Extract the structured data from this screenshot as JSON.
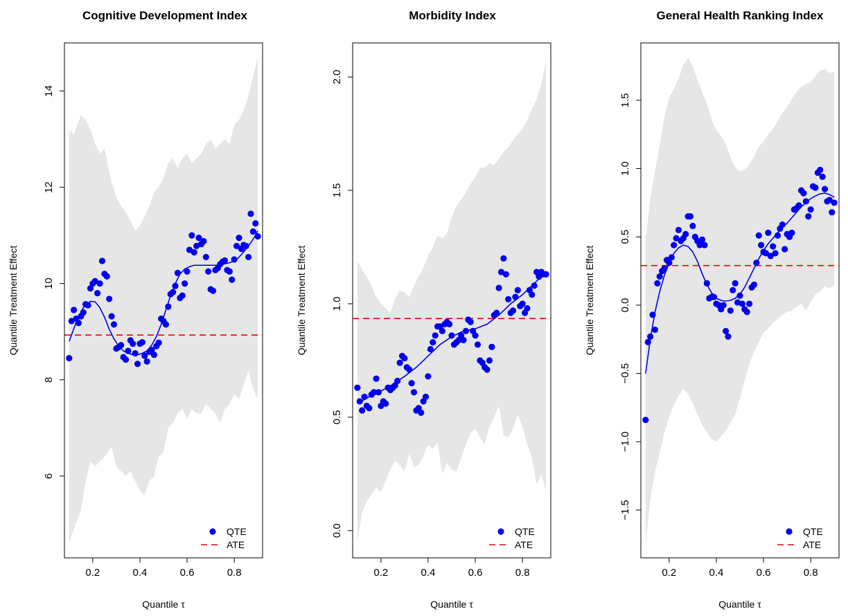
{
  "chart_data": [
    {
      "type": "scatter",
      "title": "Cognitive Development Index",
      "xlabel": "Quantile τ",
      "ylabel": "Quantile Treatment Effect",
      "xlim": [
        0.08,
        0.92
      ],
      "ylim": [
        4.3,
        15.0
      ],
      "xticks": [
        0.2,
        0.4,
        0.6,
        0.8
      ],
      "yticks": [
        6,
        8,
        10,
        12,
        14
      ],
      "grid": false,
      "legend_position": "bottom-right",
      "legend": [
        "QTE",
        "ATE"
      ],
      "colors": {
        "qte": "#0000ee",
        "ate": "#ee0000",
        "band": "#e6e6e6"
      },
      "ate": 8.93,
      "band": {
        "x": [
          0.1,
          0.12,
          0.15,
          0.17,
          0.19,
          0.21,
          0.23,
          0.25,
          0.28,
          0.3,
          0.32,
          0.34,
          0.36,
          0.38,
          0.4,
          0.42,
          0.44,
          0.46,
          0.48,
          0.5,
          0.52,
          0.54,
          0.56,
          0.58,
          0.6,
          0.62,
          0.64,
          0.66,
          0.68,
          0.7,
          0.72,
          0.74,
          0.76,
          0.78,
          0.8,
          0.82,
          0.84,
          0.86,
          0.88,
          0.9
        ],
        "upper": [
          13.2,
          13.1,
          13.5,
          13.4,
          13.2,
          12.9,
          12.7,
          12.8,
          12.1,
          11.8,
          11.6,
          11.5,
          11.3,
          11.1,
          11.2,
          11.4,
          11.6,
          11.9,
          12.0,
          12.2,
          12.5,
          12.6,
          12.4,
          12.6,
          12.7,
          12.5,
          12.6,
          12.7,
          12.9,
          13.0,
          12.8,
          12.9,
          13.0,
          12.9,
          13.3,
          13.4,
          13.6,
          13.9,
          14.3,
          14.7
        ],
        "lower": [
          4.6,
          4.9,
          5.3,
          5.9,
          6.3,
          6.2,
          6.3,
          6.4,
          6.6,
          6.2,
          6.1,
          6.0,
          6.1,
          5.9,
          5.7,
          5.6,
          5.9,
          6.0,
          6.4,
          6.5,
          7.0,
          7.1,
          7.3,
          7.4,
          7.2,
          7.4,
          7.3,
          7.3,
          7.5,
          7.4,
          7.3,
          7.1,
          7.4,
          7.5,
          7.7,
          7.6,
          7.9,
          8.2,
          7.8,
          7.6
        ]
      },
      "smooth": {
        "x": [
          0.1,
          0.13,
          0.16,
          0.19,
          0.21,
          0.23,
          0.25,
          0.27,
          0.29,
          0.31,
          0.33,
          0.35,
          0.37,
          0.39,
          0.41,
          0.43,
          0.45,
          0.47,
          0.49,
          0.51,
          0.53,
          0.55,
          0.57,
          0.59,
          0.61,
          0.63,
          0.65,
          0.67,
          0.69,
          0.71,
          0.73,
          0.75,
          0.77,
          0.79,
          0.81,
          0.83,
          0.85,
          0.87,
          0.89,
          0.9
        ],
        "y": [
          8.8,
          9.2,
          9.5,
          9.63,
          9.62,
          9.5,
          9.3,
          9.05,
          8.85,
          8.7,
          8.6,
          8.55,
          8.52,
          8.52,
          8.55,
          8.6,
          8.72,
          8.9,
          9.15,
          9.45,
          9.75,
          10.0,
          10.2,
          10.3,
          10.35,
          10.38,
          10.38,
          10.38,
          10.38,
          10.38,
          10.38,
          10.4,
          10.42,
          10.45,
          10.5,
          10.6,
          10.72,
          10.85,
          11.0,
          11.1
        ]
      },
      "points": {
        "x": [
          0.1,
          0.11,
          0.12,
          0.13,
          0.14,
          0.15,
          0.16,
          0.17,
          0.18,
          0.19,
          0.2,
          0.21,
          0.22,
          0.23,
          0.24,
          0.25,
          0.26,
          0.27,
          0.28,
          0.29,
          0.3,
          0.31,
          0.32,
          0.33,
          0.34,
          0.35,
          0.36,
          0.37,
          0.38,
          0.39,
          0.4,
          0.41,
          0.42,
          0.43,
          0.44,
          0.45,
          0.46,
          0.47,
          0.48,
          0.49,
          0.5,
          0.51,
          0.52,
          0.53,
          0.54,
          0.55,
          0.56,
          0.57,
          0.58,
          0.59,
          0.6,
          0.61,
          0.62,
          0.63,
          0.64,
          0.65,
          0.66,
          0.67,
          0.68,
          0.69,
          0.7,
          0.71,
          0.72,
          0.73,
          0.74,
          0.75,
          0.76,
          0.77,
          0.78,
          0.79,
          0.8,
          0.81,
          0.82,
          0.83,
          0.84,
          0.85,
          0.86,
          0.87,
          0.88,
          0.89,
          0.9
        ],
        "y": [
          8.45,
          9.22,
          9.45,
          9.27,
          9.18,
          9.32,
          9.4,
          9.57,
          9.55,
          9.9,
          10.0,
          10.05,
          9.8,
          10.0,
          10.47,
          10.2,
          10.15,
          9.68,
          9.32,
          9.15,
          8.65,
          8.68,
          8.72,
          8.47,
          8.42,
          8.6,
          8.82,
          8.75,
          8.55,
          8.33,
          8.75,
          8.78,
          8.5,
          8.38,
          8.58,
          8.62,
          8.52,
          8.7,
          8.77,
          9.27,
          9.22,
          9.15,
          9.52,
          9.78,
          9.82,
          9.95,
          10.22,
          9.7,
          9.75,
          10.0,
          10.25,
          10.7,
          11.0,
          10.65,
          10.78,
          10.95,
          10.82,
          10.88,
          10.55,
          10.25,
          9.88,
          9.85,
          10.28,
          10.32,
          10.4,
          10.45,
          10.48,
          10.28,
          10.25,
          10.08,
          10.5,
          10.78,
          10.95,
          10.72,
          10.8,
          10.78,
          10.55,
          11.45,
          11.08,
          11.25,
          10.98
        ]
      }
    },
    {
      "type": "scatter",
      "title": "Morbidity Index",
      "xlabel": "Quantile τ",
      "ylabel": "Quantile Treatment Effect",
      "xlim": [
        0.08,
        0.92
      ],
      "ylim": [
        -0.12,
        2.15
      ],
      "xticks": [
        0.2,
        0.4,
        0.6,
        0.8
      ],
      "yticks": [
        0.0,
        0.5,
        1.0,
        1.5,
        2.0
      ],
      "grid": false,
      "legend_position": "bottom-right",
      "legend": [
        "QTE",
        "ATE"
      ],
      "colors": {
        "qte": "#0000ee",
        "ate": "#ee0000",
        "band": "#e6e6e6"
      },
      "ate": 0.935,
      "band": {
        "x": [
          0.1,
          0.12,
          0.14,
          0.16,
          0.18,
          0.2,
          0.22,
          0.24,
          0.26,
          0.28,
          0.3,
          0.32,
          0.34,
          0.36,
          0.38,
          0.4,
          0.42,
          0.44,
          0.46,
          0.48,
          0.5,
          0.52,
          0.54,
          0.56,
          0.58,
          0.6,
          0.62,
          0.64,
          0.66,
          0.68,
          0.7,
          0.72,
          0.74,
          0.76,
          0.78,
          0.8,
          0.82,
          0.84,
          0.86,
          0.88,
          0.9
        ],
        "upper": [
          1.19,
          1.15,
          1.12,
          1.08,
          1.03,
          1.0,
          0.98,
          0.96,
          1.02,
          1.06,
          1.05,
          1.03,
          1.08,
          1.12,
          1.16,
          1.21,
          1.25,
          1.3,
          1.29,
          1.31,
          1.38,
          1.43,
          1.46,
          1.49,
          1.53,
          1.56,
          1.6,
          1.6,
          1.62,
          1.61,
          1.64,
          1.67,
          1.69,
          1.72,
          1.75,
          1.77,
          1.81,
          1.86,
          1.9,
          1.97,
          2.07
        ],
        "lower": [
          -0.05,
          0.08,
          0.13,
          0.16,
          0.19,
          0.17,
          0.22,
          0.27,
          0.31,
          0.29,
          0.26,
          0.34,
          0.28,
          0.29,
          0.33,
          0.38,
          0.36,
          0.39,
          0.25,
          0.3,
          0.27,
          0.26,
          0.32,
          0.38,
          0.43,
          0.45,
          0.41,
          0.38,
          0.46,
          0.5,
          0.55,
          0.42,
          0.41,
          0.45,
          0.51,
          0.46,
          0.38,
          0.32,
          0.2,
          0.25,
          0.17
        ]
      },
      "smooth": {
        "x": [
          0.1,
          0.15,
          0.2,
          0.25,
          0.3,
          0.35,
          0.4,
          0.45,
          0.5,
          0.55,
          0.6,
          0.65,
          0.7,
          0.75,
          0.8,
          0.85,
          0.9
        ],
        "y": [
          0.56,
          0.59,
          0.615,
          0.645,
          0.68,
          0.72,
          0.77,
          0.82,
          0.855,
          0.88,
          0.89,
          0.91,
          0.95,
          1.0,
          1.04,
          1.09,
          1.14
        ]
      },
      "points": {
        "x": [
          0.1,
          0.11,
          0.12,
          0.13,
          0.14,
          0.15,
          0.16,
          0.17,
          0.18,
          0.19,
          0.2,
          0.21,
          0.22,
          0.23,
          0.24,
          0.25,
          0.26,
          0.27,
          0.28,
          0.29,
          0.3,
          0.31,
          0.32,
          0.33,
          0.34,
          0.35,
          0.36,
          0.37,
          0.38,
          0.39,
          0.4,
          0.41,
          0.42,
          0.43,
          0.44,
          0.45,
          0.46,
          0.47,
          0.48,
          0.49,
          0.5,
          0.51,
          0.52,
          0.53,
          0.54,
          0.55,
          0.56,
          0.57,
          0.58,
          0.59,
          0.6,
          0.61,
          0.62,
          0.63,
          0.64,
          0.65,
          0.66,
          0.67,
          0.68,
          0.69,
          0.7,
          0.71,
          0.72,
          0.73,
          0.74,
          0.75,
          0.76,
          0.77,
          0.78,
          0.79,
          0.8,
          0.81,
          0.82,
          0.83,
          0.84,
          0.85,
          0.86,
          0.87,
          0.88,
          0.89,
          0.9
        ],
        "y": [
          0.63,
          0.57,
          0.53,
          0.59,
          0.55,
          0.54,
          0.6,
          0.61,
          0.67,
          0.61,
          0.55,
          0.57,
          0.56,
          0.63,
          0.62,
          0.63,
          0.64,
          0.66,
          0.74,
          0.77,
          0.76,
          0.72,
          0.71,
          0.65,
          0.61,
          0.53,
          0.54,
          0.52,
          0.57,
          0.59,
          0.68,
          0.8,
          0.83,
          0.86,
          0.9,
          0.9,
          0.88,
          0.91,
          0.92,
          0.91,
          0.86,
          0.82,
          0.83,
          0.84,
          0.86,
          0.84,
          0.88,
          0.93,
          0.92,
          0.88,
          0.86,
          0.82,
          0.75,
          0.74,
          0.72,
          0.71,
          0.75,
          0.81,
          0.95,
          0.96,
          1.07,
          1.14,
          1.2,
          1.13,
          1.02,
          0.96,
          0.97,
          1.03,
          1.06,
          0.99,
          1.0,
          0.96,
          0.98,
          1.06,
          1.04,
          1.08,
          1.14,
          1.12,
          1.14,
          1.13,
          1.13
        ]
      }
    },
    {
      "type": "scatter",
      "title": "General Health Ranking Index",
      "xlabel": "Quantile τ",
      "ylabel": "Quantile Treatment Effect",
      "xlim": [
        0.08,
        0.92
      ],
      "ylim": [
        -1.85,
        1.92
      ],
      "xticks": [
        0.2,
        0.4,
        0.6,
        0.8
      ],
      "yticks": [
        -1.5,
        -1.0,
        -0.5,
        0.0,
        0.5,
        1.0,
        1.5
      ],
      "grid": false,
      "legend_position": "bottom-right",
      "legend": [
        "QTE",
        "ATE"
      ],
      "colors": {
        "qte": "#0000ee",
        "ate": "#ee0000",
        "band": "#e6e6e6"
      },
      "ate": 0.29,
      "band": {
        "x": [
          0.1,
          0.12,
          0.14,
          0.16,
          0.18,
          0.2,
          0.22,
          0.24,
          0.26,
          0.28,
          0.3,
          0.32,
          0.34,
          0.36,
          0.38,
          0.4,
          0.42,
          0.44,
          0.46,
          0.48,
          0.5,
          0.52,
          0.54,
          0.56,
          0.58,
          0.6,
          0.62,
          0.64,
          0.66,
          0.68,
          0.7,
          0.72,
          0.74,
          0.76,
          0.78,
          0.8,
          0.82,
          0.84,
          0.86,
          0.88,
          0.9
        ],
        "upper": [
          0.48,
          0.78,
          0.98,
          1.17,
          1.38,
          1.52,
          1.58,
          1.66,
          1.76,
          1.81,
          1.75,
          1.65,
          1.56,
          1.48,
          1.36,
          1.28,
          1.24,
          1.18,
          1.08,
          1.01,
          0.98,
          0.99,
          1.03,
          1.09,
          1.16,
          1.2,
          1.25,
          1.29,
          1.35,
          1.41,
          1.45,
          1.51,
          1.56,
          1.6,
          1.62,
          1.63,
          1.68,
          1.72,
          1.73,
          1.7,
          1.71
        ],
        "lower": [
          -1.75,
          -1.42,
          -1.22,
          -1.08,
          -0.93,
          -0.82,
          -0.73,
          -0.66,
          -0.61,
          -0.65,
          -0.72,
          -0.8,
          -0.88,
          -0.93,
          -0.98,
          -1.0,
          -0.96,
          -0.92,
          -0.86,
          -0.8,
          -0.68,
          -0.55,
          -0.43,
          -0.34,
          -0.27,
          -0.2,
          -0.17,
          -0.13,
          -0.1,
          -0.07,
          -0.05,
          -0.04,
          -0.01,
          0.01,
          -0.04,
          0.02,
          0.08,
          0.1,
          0.14,
          0.12,
          0.15
        ]
      },
      "smooth": {
        "x": [
          0.1,
          0.12,
          0.14,
          0.16,
          0.18,
          0.2,
          0.22,
          0.24,
          0.26,
          0.28,
          0.3,
          0.32,
          0.34,
          0.36,
          0.38,
          0.4,
          0.42,
          0.44,
          0.46,
          0.48,
          0.5,
          0.52,
          0.54,
          0.56,
          0.58,
          0.6,
          0.62,
          0.64,
          0.66,
          0.68,
          0.7,
          0.72,
          0.74,
          0.76,
          0.78,
          0.8,
          0.82,
          0.84,
          0.86,
          0.88,
          0.9
        ],
        "y": [
          -0.5,
          -0.25,
          -0.05,
          0.1,
          0.22,
          0.31,
          0.38,
          0.42,
          0.44,
          0.43,
          0.39,
          0.32,
          0.23,
          0.15,
          0.09,
          0.05,
          0.035,
          0.03,
          0.035,
          0.05,
          0.08,
          0.13,
          0.2,
          0.27,
          0.34,
          0.4,
          0.45,
          0.49,
          0.53,
          0.57,
          0.6,
          0.64,
          0.68,
          0.72,
          0.75,
          0.78,
          0.8,
          0.815,
          0.82,
          0.81,
          0.79
        ]
      },
      "points": {
        "x": [
          0.1,
          0.11,
          0.12,
          0.13,
          0.14,
          0.15,
          0.16,
          0.17,
          0.18,
          0.19,
          0.2,
          0.21,
          0.22,
          0.23,
          0.24,
          0.25,
          0.26,
          0.27,
          0.28,
          0.29,
          0.3,
          0.31,
          0.32,
          0.33,
          0.34,
          0.35,
          0.36,
          0.37,
          0.38,
          0.39,
          0.4,
          0.41,
          0.42,
          0.43,
          0.44,
          0.45,
          0.46,
          0.47,
          0.48,
          0.49,
          0.5,
          0.51,
          0.52,
          0.53,
          0.54,
          0.55,
          0.56,
          0.57,
          0.58,
          0.59,
          0.6,
          0.61,
          0.62,
          0.63,
          0.64,
          0.65,
          0.66,
          0.67,
          0.68,
          0.69,
          0.7,
          0.71,
          0.72,
          0.73,
          0.74,
          0.75,
          0.76,
          0.77,
          0.78,
          0.79,
          0.8,
          0.81,
          0.82,
          0.83,
          0.84,
          0.85,
          0.86,
          0.87,
          0.88,
          0.89,
          0.9
        ],
        "y": [
          -0.84,
          -0.27,
          -0.23,
          -0.07,
          -0.18,
          0.16,
          0.21,
          0.25,
          0.27,
          0.33,
          0.31,
          0.35,
          0.44,
          0.49,
          0.55,
          0.47,
          0.49,
          0.52,
          0.65,
          0.65,
          0.58,
          0.5,
          0.47,
          0.44,
          0.48,
          0.44,
          0.16,
          0.05,
          0.06,
          0.06,
          0.01,
          0.0,
          -0.03,
          0.0,
          -0.19,
          -0.23,
          -0.04,
          0.11,
          0.16,
          0.02,
          0.07,
          0.01,
          -0.03,
          -0.05,
          0.01,
          0.13,
          0.15,
          0.31,
          0.51,
          0.44,
          0.39,
          0.38,
          0.53,
          0.36,
          0.43,
          0.38,
          0.51,
          0.56,
          0.59,
          0.41,
          0.52,
          0.5,
          0.53,
          0.7,
          0.71,
          0.73,
          0.84,
          0.82,
          0.76,
          0.65,
          0.7,
          0.87,
          0.86,
          0.97,
          0.99,
          0.94,
          0.85,
          0.76,
          0.77,
          0.68,
          0.75
        ]
      }
    }
  ]
}
